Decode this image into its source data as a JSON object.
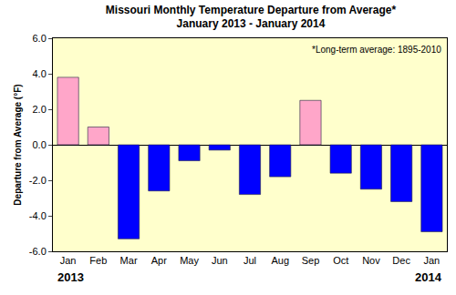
{
  "chart_data": {
    "type": "bar",
    "title": "Missouri Monthly Temperature Departure from Average*",
    "subtitle": "January 2013 - January 2014",
    "y_label": "Departure from Average (°F)",
    "categories": [
      "Jan",
      "Feb",
      "Mar",
      "Apr",
      "May",
      "Jun",
      "Jul",
      "Aug",
      "Sep",
      "Oct",
      "Nov",
      "Dec",
      "Jan"
    ],
    "values": [
      3.8,
      1.0,
      -5.3,
      -2.6,
      -0.9,
      -0.3,
      -2.8,
      -1.8,
      2.5,
      -1.6,
      -2.5,
      -3.2,
      -4.9
    ],
    "colors": [
      "#ffa6c9",
      "#ffa6c9",
      "#0000ff",
      "#0000ff",
      "#0000ff",
      "#0000ff",
      "#0000ff",
      "#0000ff",
      "#ffa6c9",
      "#0000ff",
      "#0000ff",
      "#0000ff",
      "#0000ff"
    ],
    "ylim": [
      -6,
      6
    ],
    "yticks": [
      {
        "value": -6,
        "label": "-6.0"
      },
      {
        "value": -4,
        "label": "-4.0"
      },
      {
        "value": -2,
        "label": "-2.0"
      },
      {
        "value": 0,
        "label": "0.0"
      },
      {
        "value": 2,
        "label": "2.0"
      },
      {
        "value": 4,
        "label": "4.0"
      },
      {
        "value": 6,
        "label": "6.0"
      }
    ],
    "grid": false,
    "annotations": [
      {
        "text": "*Long-term average: 1895-2010"
      },
      {
        "text": "2013",
        "x": 0
      },
      {
        "text": "2014",
        "x": 12
      }
    ]
  }
}
